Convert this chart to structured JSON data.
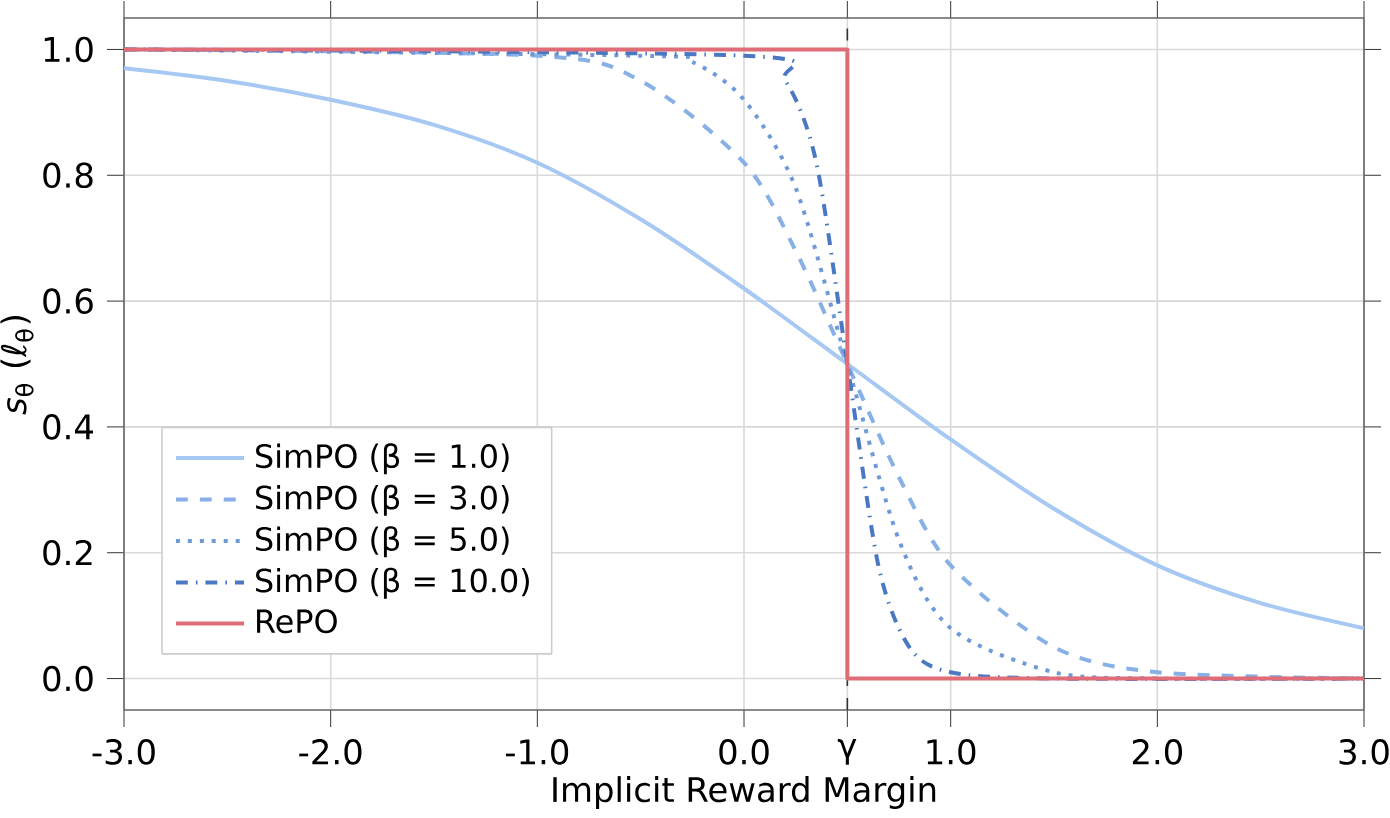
{
  "chart_data": {
    "type": "line",
    "xlabel": "Implicit Reward Margin",
    "ylabel": "*s*$_{θ}$ (*ℓ*$_{θ}$)",
    "xlim": [
      -3,
      3
    ],
    "ylim": [
      -0.05,
      1.05
    ],
    "xticks": [
      {
        "value": -3,
        "label": "-3.0"
      },
      {
        "value": -2,
        "label": "-2.0"
      },
      {
        "value": -1,
        "label": "-1.0"
      },
      {
        "value": 0,
        "label": "0.0"
      },
      {
        "value": 0.5,
        "label": "γ"
      },
      {
        "value": 1,
        "label": "1.0"
      },
      {
        "value": 2,
        "label": "2.0"
      },
      {
        "value": 3,
        "label": "3.0"
      }
    ],
    "yticks": [
      {
        "value": 0,
        "label": "0.0"
      },
      {
        "value": 0.2,
        "label": "0.2"
      },
      {
        "value": 0.4,
        "label": "0.4"
      },
      {
        "value": 0.6,
        "label": "0.6"
      },
      {
        "value": 0.8,
        "label": "0.8"
      },
      {
        "value": 1,
        "label": "1.0"
      }
    ],
    "grid": true,
    "legend": "bottom left",
    "ref_lines": [
      {
        "axis": "x",
        "value": 0.5,
        "color": "#333333",
        "line_style": "dashed"
      }
    ],
    "series": [
      {
        "name": "SimPO (β = 1.0)",
        "color": "#a6c8f2",
        "line_style": "solid",
        "x": [
          -3,
          -2.5,
          -2,
          -1.5,
          -1,
          -0.5,
          0,
          0.5,
          1,
          1.5,
          2,
          2.5,
          3
        ],
        "values": [
          0.97,
          0.95,
          0.92,
          0.88,
          0.82,
          0.73,
          0.62,
          0.5,
          0.38,
          0.27,
          0.18,
          0.12,
          0.08
        ]
      },
      {
        "name": "SimPO (β = 3.0)",
        "color": "#86b0e6",
        "line_style": "dashed",
        "x": [
          -3,
          -1,
          -0.5,
          0,
          0.25,
          0.5,
          0.75,
          1,
          1.5,
          2,
          3
        ],
        "values": [
          1.0,
          0.99,
          0.95,
          0.82,
          0.68,
          0.5,
          0.32,
          0.18,
          0.05,
          0.01,
          0.0
        ]
      },
      {
        "name": "SimPO (β = 5.0)",
        "color": "#6f9ada",
        "line_style": "dotted",
        "x": [
          -3,
          -0.5,
          -0.25,
          0,
          0.25,
          0.5,
          0.75,
          1,
          1.5,
          2,
          3
        ],
        "values": [
          1.0,
          0.99,
          0.98,
          0.92,
          0.78,
          0.5,
          0.22,
          0.08,
          0.01,
          0.0,
          0.0
        ]
      },
      {
        "name": "SimPO (β = 10.0)",
        "color": "#4a78c2",
        "line_style": "dashdot",
        "x": [
          -3,
          0,
          0.2,
          0.35,
          0.5,
          0.65,
          0.8,
          1,
          1.5,
          3
        ],
        "values": [
          1.0,
          0.99,
          0.95,
          0.82,
          0.5,
          0.18,
          0.05,
          0.01,
          0.0,
          0.0
        ]
      },
      {
        "name": "RePO",
        "color": "#e06c78",
        "line_style": "solid",
        "x": [
          -3,
          0.5,
          0.5,
          3
        ],
        "values": [
          1,
          1,
          0,
          0
        ]
      }
    ]
  }
}
